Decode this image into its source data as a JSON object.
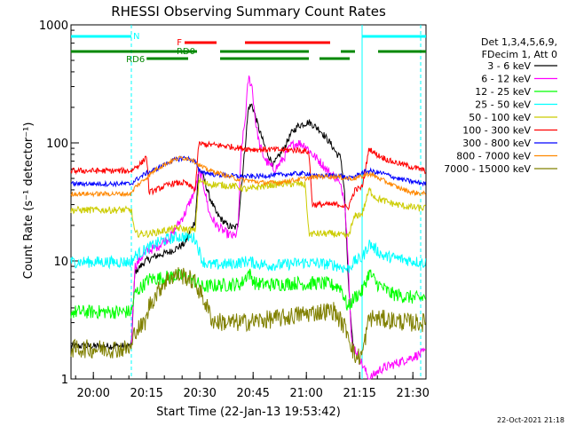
{
  "chart_data": {
    "type": "line",
    "title": "RHESSI Observing Summary Count Rates",
    "xlabel": "Start Time (22-Jan-13 19:53:42)",
    "ylabel": "Count Rate (s⁻¹ detector⁻¹)",
    "ylog": true,
    "ylim": [
      1,
      1000
    ],
    "xlim_min": [
      0,
      100
    ],
    "x_tick_labels": [
      "20:00",
      "20:15",
      "20:30",
      "20:45",
      "21:00",
      "21:15",
      "21:30"
    ],
    "x_tick_min": [
      6.3,
      21.3,
      36.3,
      51.3,
      66.3,
      81.3,
      96.3
    ],
    "y_tick_labels": [
      "1",
      "10",
      "100",
      "1000"
    ],
    "y_tick_values": [
      1,
      10,
      100,
      1000
    ],
    "legend_header": [
      "Det 1,3,4,5,6,9,",
      "FDecim 1, Att 0"
    ],
    "footer_date": "22-Oct-2021 21:18",
    "flags": [
      {
        "label": "N",
        "color": "#00ffff",
        "segments": [
          [
            0,
            17
          ],
          [
            82,
            100
          ]
        ]
      },
      {
        "label": "F",
        "color": "#ff0000",
        "segments": [
          [
            32,
            41
          ],
          [
            49,
            73
          ]
        ]
      },
      {
        "label": "RD0",
        "color": "#008800",
        "segments": [
          [
            0,
            35.5
          ],
          [
            42,
            67
          ],
          [
            76,
            80
          ],
          [
            86.5,
            100
          ]
        ]
      },
      {
        "label": "RD6",
        "color": "#008800",
        "segments": [
          [
            21.3,
            33
          ],
          [
            42,
            67
          ],
          [
            70,
            78.5
          ]
        ]
      }
    ],
    "night_boundaries_min": [
      17,
      82,
      98.5
    ],
    "series": [
      {
        "name": "3 - 6 keV",
        "color": "#000000",
        "points": [
          [
            0,
            1.9
          ],
          [
            16,
            1.9
          ],
          [
            17,
            1.9
          ],
          [
            18,
            8
          ],
          [
            21,
            10
          ],
          [
            24,
            11
          ],
          [
            28,
            12
          ],
          [
            32,
            14
          ],
          [
            35,
            22
          ],
          [
            36,
            60
          ],
          [
            37,
            55
          ],
          [
            39,
            35
          ],
          [
            41,
            25
          ],
          [
            44,
            20
          ],
          [
            46,
            19
          ],
          [
            47,
            20
          ],
          [
            49,
            90
          ],
          [
            50,
            200
          ],
          [
            51,
            210
          ],
          [
            53,
            130
          ],
          [
            55,
            85
          ],
          [
            57,
            65
          ],
          [
            60,
            90
          ],
          [
            62,
            120
          ],
          [
            64,
            140
          ],
          [
            67,
            150
          ],
          [
            70,
            130
          ],
          [
            73,
            100
          ],
          [
            75,
            80
          ],
          [
            76,
            75
          ],
          [
            77,
            40
          ],
          [
            78,
            8
          ],
          [
            79,
            2.5
          ],
          [
            80,
            1.6
          ]
        ]
      },
      {
        "name": "6 - 12 keV",
        "color": "#ff00ff",
        "points": [
          [
            17,
            1.9
          ],
          [
            18,
            9
          ],
          [
            21,
            12
          ],
          [
            24,
            13
          ],
          [
            28,
            16
          ],
          [
            30,
            20
          ],
          [
            32,
            25
          ],
          [
            35,
            40
          ],
          [
            36,
            55
          ],
          [
            37,
            50
          ],
          [
            39,
            25
          ],
          [
            41,
            20
          ],
          [
            44,
            17
          ],
          [
            46,
            16
          ],
          [
            47,
            18
          ],
          [
            48,
            90
          ],
          [
            49,
            150
          ],
          [
            50,
            360
          ],
          [
            51,
            300
          ],
          [
            52,
            150
          ],
          [
            53,
            100
          ],
          [
            54,
            80
          ],
          [
            55,
            70
          ],
          [
            57,
            60
          ],
          [
            58,
            62
          ],
          [
            60,
            75
          ],
          [
            62,
            95
          ],
          [
            64,
            100
          ],
          [
            66,
            95
          ],
          [
            68,
            80
          ],
          [
            70,
            70
          ],
          [
            73,
            55
          ],
          [
            75,
            50
          ],
          [
            77,
            35
          ],
          [
            78,
            12
          ],
          [
            79,
            2
          ],
          [
            80,
            1.8
          ],
          [
            84,
            1
          ],
          [
            87,
            1.2
          ],
          [
            100,
            1.7
          ]
        ]
      },
      {
        "name": "12 - 25 keV",
        "color": "#00ff00",
        "points": [
          [
            0,
            3.7
          ],
          [
            17,
            3.7
          ],
          [
            18,
            5.3
          ],
          [
            22,
            7
          ],
          [
            26,
            7.2
          ],
          [
            30,
            7.5
          ],
          [
            34,
            7
          ],
          [
            37,
            6
          ],
          [
            41,
            6.2
          ],
          [
            45,
            6.3
          ],
          [
            48,
            6.4
          ],
          [
            50,
            8
          ],
          [
            52,
            6.4
          ],
          [
            56,
            6.3
          ],
          [
            60,
            6.4
          ],
          [
            64,
            6.5
          ],
          [
            67,
            6.3
          ],
          [
            68,
            6.5
          ],
          [
            72,
            6.4
          ],
          [
            76,
            6
          ],
          [
            78,
            4
          ],
          [
            80,
            5
          ],
          [
            82,
            5.5
          ],
          [
            84,
            8
          ],
          [
            86,
            6.5
          ],
          [
            90,
            5.3
          ],
          [
            94,
            5
          ],
          [
            98,
            4.8
          ],
          [
            100,
            5
          ]
        ]
      },
      {
        "name": "25 - 50 keV",
        "color": "#00ffff",
        "points": [
          [
            0,
            9.8
          ],
          [
            17,
            9.8
          ],
          [
            18,
            11
          ],
          [
            22,
            13
          ],
          [
            26,
            15
          ],
          [
            30,
            16
          ],
          [
            33,
            16
          ],
          [
            35,
            15.5
          ],
          [
            37,
            10
          ],
          [
            39,
            9.2
          ],
          [
            42,
            9.3
          ],
          [
            46,
            9.5
          ],
          [
            50,
            10
          ],
          [
            52,
            9.5
          ],
          [
            56,
            9.2
          ],
          [
            60,
            9.3
          ],
          [
            64,
            9.6
          ],
          [
            67,
            9.7
          ],
          [
            70,
            9.5
          ],
          [
            74,
            9.3
          ],
          [
            78,
            8.5
          ],
          [
            80,
            10
          ],
          [
            82,
            10.5
          ],
          [
            84,
            14
          ],
          [
            88,
            11
          ],
          [
            92,
            10.5
          ],
          [
            96,
            10
          ],
          [
            100,
            9.6
          ]
        ]
      },
      {
        "name": "50 - 100 keV",
        "color": "#cccc00",
        "points": [
          [
            0,
            27
          ],
          [
            17,
            27
          ],
          [
            18,
            17
          ],
          [
            22,
            17
          ],
          [
            26,
            18
          ],
          [
            30,
            19
          ],
          [
            35,
            18
          ],
          [
            36,
            48
          ],
          [
            38,
            45
          ],
          [
            42,
            44
          ],
          [
            46,
            43
          ],
          [
            50,
            40
          ],
          [
            52,
            42
          ],
          [
            56,
            44
          ],
          [
            60,
            45
          ],
          [
            64,
            45
          ],
          [
            66,
            44
          ],
          [
            67,
            17
          ],
          [
            70,
            17
          ],
          [
            74,
            17
          ],
          [
            78,
            16
          ],
          [
            80,
            24
          ],
          [
            82,
            25
          ],
          [
            84,
            40
          ],
          [
            86,
            34
          ],
          [
            90,
            31
          ],
          [
            94,
            29
          ],
          [
            98,
            28
          ],
          [
            100,
            28
          ]
        ]
      },
      {
        "name": "100 - 300 keV",
        "color": "#ff0000",
        "points": [
          [
            0,
            58
          ],
          [
            17,
            58
          ],
          [
            18,
            62
          ],
          [
            20,
            68
          ],
          [
            21.3,
            78
          ],
          [
            22,
            38
          ],
          [
            24,
            40
          ],
          [
            28,
            45
          ],
          [
            32,
            46
          ],
          [
            35,
            40
          ],
          [
            36,
            98
          ],
          [
            40,
            96
          ],
          [
            44,
            94
          ],
          [
            48,
            90
          ],
          [
            52,
            88
          ],
          [
            56,
            88
          ],
          [
            60,
            87
          ],
          [
            64,
            87
          ],
          [
            67,
            84
          ],
          [
            68,
            30
          ],
          [
            72,
            30
          ],
          [
            76,
            30
          ],
          [
            78,
            28
          ],
          [
            80,
            40
          ],
          [
            82,
            42
          ],
          [
            84,
            90
          ],
          [
            86,
            80
          ],
          [
            90,
            70
          ],
          [
            94,
            65
          ],
          [
            98,
            60
          ],
          [
            100,
            58
          ]
        ]
      },
      {
        "name": "300 - 800 keV",
        "color": "#0000ff",
        "points": [
          [
            0,
            45
          ],
          [
            17,
            45
          ],
          [
            18,
            48
          ],
          [
            21,
            55
          ],
          [
            24,
            60
          ],
          [
            28,
            70
          ],
          [
            32,
            75
          ],
          [
            35,
            70
          ],
          [
            36,
            58
          ],
          [
            40,
            54
          ],
          [
            44,
            53
          ],
          [
            48,
            52
          ],
          [
            52,
            52
          ],
          [
            56,
            53
          ],
          [
            60,
            54
          ],
          [
            64,
            55
          ],
          [
            67,
            55
          ],
          [
            68,
            52
          ],
          [
            72,
            53
          ],
          [
            76,
            53
          ],
          [
            78,
            50
          ],
          [
            80,
            52
          ],
          [
            82,
            56
          ],
          [
            84,
            58
          ],
          [
            88,
            55
          ],
          [
            92,
            50
          ],
          [
            96,
            47
          ],
          [
            100,
            45
          ]
        ]
      },
      {
        "name": "800 - 7000 keV",
        "color": "#ff8800",
        "points": [
          [
            0,
            37
          ],
          [
            17,
            37
          ],
          [
            18,
            42
          ],
          [
            21,
            50
          ],
          [
            24,
            60
          ],
          [
            28,
            70
          ],
          [
            31,
            75
          ],
          [
            34,
            73
          ],
          [
            36,
            65
          ],
          [
            38,
            60
          ],
          [
            42,
            55
          ],
          [
            46,
            50
          ],
          [
            50,
            48
          ],
          [
            54,
            46
          ],
          [
            58,
            46
          ],
          [
            62,
            48
          ],
          [
            66,
            50
          ],
          [
            70,
            52
          ],
          [
            74,
            52
          ],
          [
            78,
            50
          ],
          [
            80,
            50
          ],
          [
            82,
            52
          ],
          [
            84,
            55
          ],
          [
            88,
            48
          ],
          [
            92,
            42
          ],
          [
            96,
            38
          ],
          [
            100,
            37
          ]
        ]
      },
      {
        "name": "7000 - 15000 keV",
        "color": "#808000",
        "points": [
          [
            0,
            1.8
          ],
          [
            17,
            1.8
          ],
          [
            18,
            2.6
          ],
          [
            20,
            2.8
          ],
          [
            21.3,
            3.2
          ],
          [
            22,
            4.2
          ],
          [
            26,
            6.5
          ],
          [
            29,
            7.6
          ],
          [
            32,
            7.5
          ],
          [
            35,
            6.5
          ],
          [
            37,
            5
          ],
          [
            40,
            3.1
          ],
          [
            44,
            3
          ],
          [
            48,
            3
          ],
          [
            52,
            3.1
          ],
          [
            56,
            3.2
          ],
          [
            60,
            3.3
          ],
          [
            64,
            3.5
          ],
          [
            67,
            3.6
          ],
          [
            70,
            3.7
          ],
          [
            74,
            3.8
          ],
          [
            78,
            2.5
          ],
          [
            80,
            1.5
          ],
          [
            82,
            1.6
          ],
          [
            84,
            3.3
          ],
          [
            88,
            3.2
          ],
          [
            92,
            3.1
          ],
          [
            96,
            3
          ],
          [
            100,
            3
          ]
        ]
      }
    ]
  }
}
